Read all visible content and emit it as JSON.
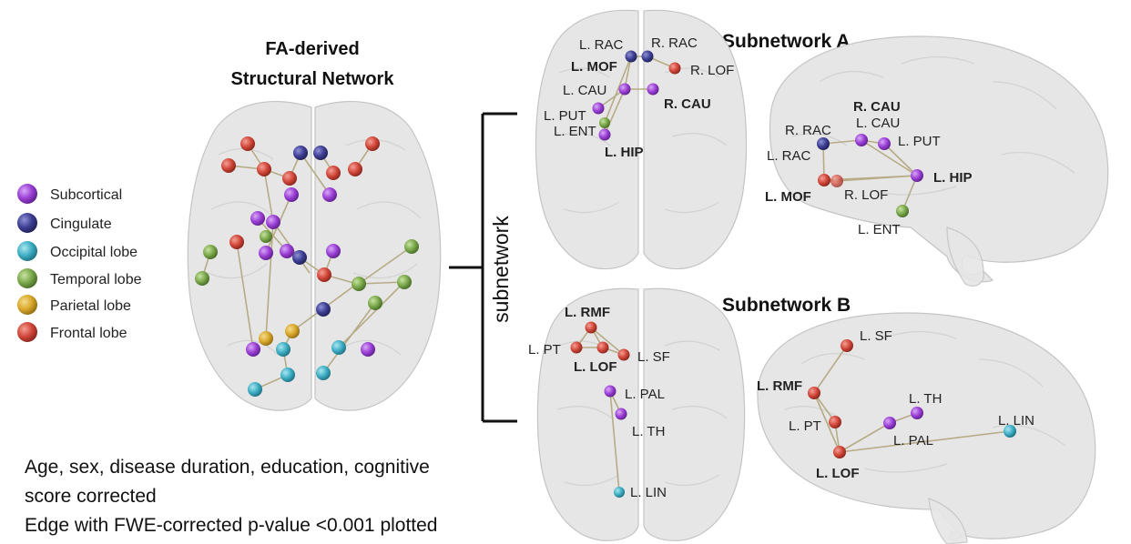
{
  "main_title": [
    "FA-derived",
    "Structural Network"
  ],
  "subnetwork_label": "subnetwork",
  "subnetwork_a_title": "Subnetwork A",
  "subnetwork_b_title": "Subnetwork B",
  "legend": [
    {
      "label": "Subcortical",
      "color": "#9b3fd6"
    },
    {
      "label": "Cingulate",
      "color": "#3e3f94"
    },
    {
      "label": "Occipital lobe",
      "color": "#3eaec4"
    },
    {
      "label": "Temporal lobe",
      "color": "#7aa84a"
    },
    {
      "label": "Parietal lobe",
      "color": "#d9a82a"
    },
    {
      "label": "Frontal lobe",
      "color": "#d2473a"
    }
  ],
  "notes": [
    "Age, sex, disease duration, education, cognitive",
    "score corrected",
    "Edge with FWE-corrected p-value <0.001 plotted"
  ],
  "subnetwork_a_axial_labels": {
    "l_rac": "L. RAC",
    "r_rac": "R. RAC",
    "l_mof": "L. MOF",
    "r_lof": "R. LOF",
    "l_cau": "L. CAU",
    "r_cau": "R. CAU",
    "l_put": "L. PUT",
    "l_ent": "L. ENT",
    "l_hip": "L. HIP"
  },
  "subnetwork_a_sagittal_labels": {
    "r_cau": "R. CAU",
    "r_rac": "R. RAC",
    "l_cau": "L. CAU",
    "l_put": "L. PUT",
    "l_rac": "L. RAC",
    "l_hip": "L. HIP",
    "l_mof": "L. MOF",
    "r_lof": "R. LOF",
    "l_ent": "L. ENT"
  },
  "subnetwork_b_axial_labels": {
    "l_rmf": "L. RMF",
    "l_pt": "L. PT",
    "l_sf": "L. SF",
    "l_lof": "L. LOF",
    "l_pal": "L. PAL",
    "l_th": "L. TH",
    "l_lin": "L. LIN"
  },
  "subnetwork_b_sagittal_labels": {
    "l_sf": "L. SF",
    "l_rmf": "L. RMF",
    "l_th": "L. TH",
    "l_pt": "L. PT",
    "l_lin": "L. LIN",
    "l_pal": "L. PAL",
    "l_lof": "L. LOF"
  }
}
